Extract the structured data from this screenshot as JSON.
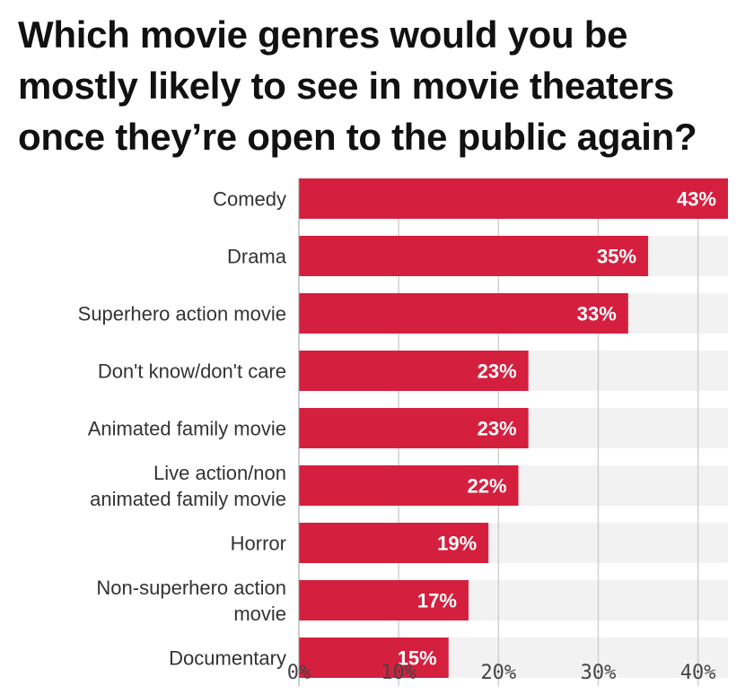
{
  "colors": {
    "bar": "#d51f3e",
    "track": "#f2f2f2",
    "grid": "#d0d0d0",
    "title": "#111111"
  },
  "chart_data": {
    "type": "bar",
    "orientation": "horizontal",
    "title_lines": [
      "Which movie genres would you be",
      "mostly likely to see in movie theaters",
      "once they’re open to the public again?"
    ],
    "categories": [
      [
        "Comedy"
      ],
      [
        "Drama"
      ],
      [
        "Superhero action movie"
      ],
      [
        "Don't know/don't care"
      ],
      [
        "Animated family movie"
      ],
      [
        "Live action/non",
        "animated family movie"
      ],
      [
        "Horror"
      ],
      [
        "Non-superhero action",
        "movie"
      ],
      [
        "Documentary"
      ]
    ],
    "values": [
      43,
      35,
      33,
      23,
      23,
      22,
      19,
      17,
      15
    ],
    "value_labels": [
      "43%",
      "35%",
      "33%",
      "23%",
      "23%",
      "22%",
      "19%",
      "17%",
      "15%"
    ],
    "xlim": [
      0,
      43
    ],
    "xticks": [
      0,
      10,
      20,
      30,
      40
    ],
    "xtick_labels": [
      "0%",
      "10%",
      "20%",
      "30%",
      "40%"
    ],
    "grid": true
  }
}
